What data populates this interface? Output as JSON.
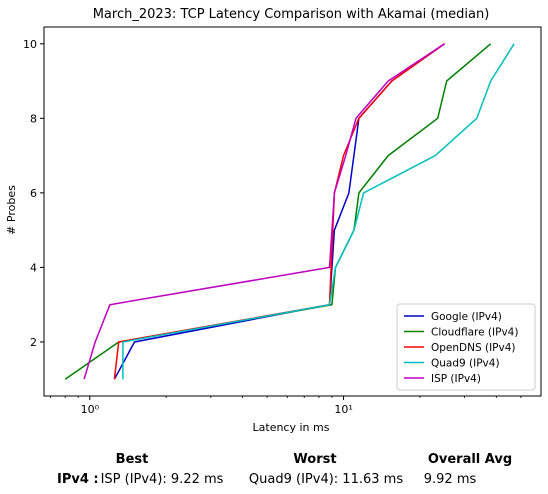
{
  "chart_data": {
    "type": "line",
    "title": "March_2023: TCP Latency Comparison with Akamai (median)",
    "xlabel": "Latency in ms",
    "ylabel": "# Probes",
    "xscale": "log",
    "xlim": [
      0.66,
      60
    ],
    "ylim": [
      0.55,
      10.45
    ],
    "xticks": [
      1,
      10
    ],
    "xtick_labels": [
      "10⁰",
      "10¹"
    ],
    "yticks": [
      2,
      4,
      6,
      8,
      10
    ],
    "grid": false,
    "legend_position": "lower-right",
    "series": [
      {
        "name": "Google (IPv4)",
        "color": "#0000cc",
        "x": [
          1.25,
          1.5,
          8.8,
          9.2,
          10.5,
          11.5,
          15.5,
          25
        ],
        "y": [
          1,
          2,
          3,
          5,
          6,
          8,
          9,
          10
        ]
      },
      {
        "name": "Cloudflare (IPv4)",
        "color": "#008000",
        "x": [
          0.8,
          1.3,
          9.0,
          9.3,
          11.0,
          11.5,
          15.0,
          23.5,
          25.5,
          38
        ],
        "y": [
          1,
          2,
          3,
          4,
          5,
          6,
          7,
          8,
          9,
          10
        ]
      },
      {
        "name": "OpenDNS (IPv4)",
        "color": "#ff0000",
        "x": [
          1.25,
          1.3,
          8.8,
          9.2,
          10.0,
          11.5,
          15.5,
          25
        ],
        "y": [
          1,
          2,
          3,
          6,
          7,
          8,
          9,
          10
        ]
      },
      {
        "name": "Quad9 (IPv4)",
        "color": "#00bfbf",
        "x": [
          1.35,
          1.35,
          8.8,
          9.3,
          11.0,
          12.0,
          23.0,
          33.5,
          38.0,
          47
        ],
        "y": [
          1,
          2,
          3,
          4,
          5,
          6,
          7,
          8,
          9,
          10
        ]
      },
      {
        "name": "ISP (IPv4)",
        "color": "#bf00bf",
        "x": [
          0.95,
          1.05,
          1.2,
          8.8,
          9.2,
          10.2,
          11.2,
          15.0,
          25
        ],
        "y": [
          1,
          2,
          3,
          4,
          6,
          7,
          8,
          9,
          10
        ]
      }
    ]
  },
  "summary": {
    "headers": {
      "best": "Best",
      "worst": "Worst",
      "overall": "Overall Avg"
    },
    "rows": [
      {
        "label": "IPv4 :",
        "best": "ISP (IPv4): 9.22 ms",
        "worst": "Quad9 (IPv4): 11.63 ms",
        "overall": "9.92 ms"
      }
    ]
  }
}
